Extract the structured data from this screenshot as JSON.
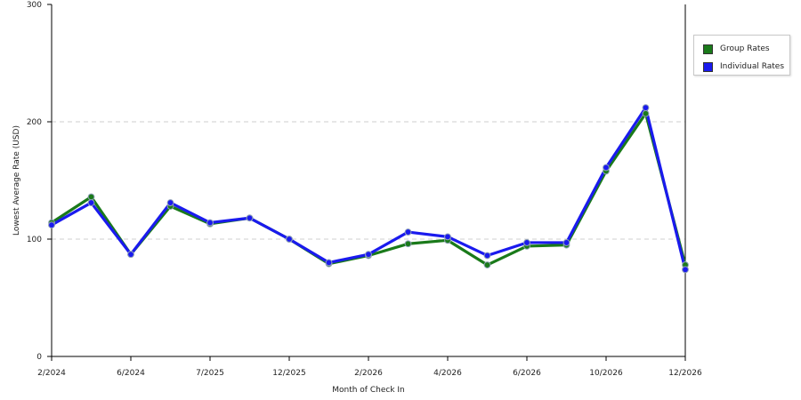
{
  "chart_data": {
    "type": "line",
    "title": "",
    "xlabel": "Month of Check In",
    "ylabel": "Lowest Average Rate (USD)",
    "ylim": [
      0,
      300
    ],
    "yticks": [
      0,
      100,
      200,
      300
    ],
    "xlim": [
      0,
      16
    ],
    "xtick_labels": [
      {
        "pos": 0,
        "label": "2/2024"
      },
      {
        "pos": 2,
        "label": "6/2024"
      },
      {
        "pos": 4,
        "label": "7/2025"
      },
      {
        "pos": 6,
        "label": "12/2025"
      },
      {
        "pos": 8,
        "label": "2/2026"
      },
      {
        "pos": 10,
        "label": "4/2026"
      },
      {
        "pos": 12,
        "label": "6/2026"
      },
      {
        "pos": 14,
        "label": "10/2026"
      },
      {
        "pos": 16,
        "label": "12/2026"
      }
    ],
    "x": [
      0,
      1,
      2,
      3,
      4,
      5,
      6,
      7,
      8,
      9,
      10,
      11,
      12,
      13,
      14,
      15,
      16
    ],
    "grid": "horizontal dashed",
    "legend_position": "right",
    "series": [
      {
        "name": "Group Rates",
        "color": "#1a7a1a",
        "values": [
          114,
          136,
          87,
          128,
          113,
          118,
          100,
          79,
          86,
          96,
          99,
          78,
          94,
          95,
          158,
          207,
          78
        ]
      },
      {
        "name": "Individual Rates",
        "color": "#1a1aee",
        "values": [
          112,
          131,
          87,
          131,
          114,
          118,
          100,
          80,
          87,
          106,
          102,
          86,
          97,
          97,
          161,
          212,
          74
        ]
      }
    ]
  }
}
